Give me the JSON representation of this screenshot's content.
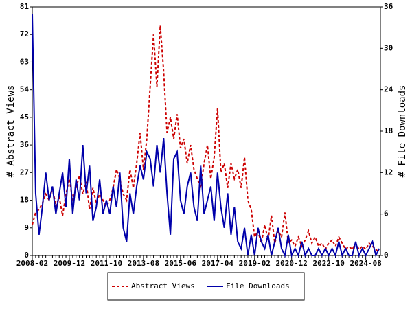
{
  "chart_data": {
    "type": "line",
    "y_label": "# Abstract Views",
    "y2_label": "# File Downloads",
    "categories": [
      "2008-02",
      null,
      null,
      null,
      null,
      null,
      null,
      null,
      null,
      null,
      null,
      "2009-12",
      null,
      null,
      null,
      null,
      null,
      null,
      null,
      null,
      null,
      null,
      "2011-10",
      null,
      null,
      null,
      null,
      null,
      null,
      null,
      null,
      null,
      null,
      "2013-08",
      null,
      null,
      null,
      null,
      null,
      null,
      null,
      null,
      null,
      null,
      "2015-06",
      null,
      null,
      null,
      null,
      null,
      null,
      null,
      null,
      null,
      null,
      "2017-04",
      null,
      null,
      null,
      null,
      null,
      null,
      null,
      null,
      null,
      null,
      "2019-02",
      null,
      null,
      null,
      null,
      null,
      null,
      null,
      null,
      null,
      null,
      "2020-12",
      null,
      null,
      null,
      null,
      null,
      null,
      null,
      null,
      null,
      null,
      "2022-10",
      null,
      null,
      null,
      null,
      null,
      null,
      null,
      null,
      null,
      null,
      "2024-08",
      null,
      null,
      null,
      null
    ],
    "series": [
      {
        "name": "Abstract Views",
        "color": "#cc0000",
        "line_style": "dashed",
        "axis": "y",
        "values": [
          10,
          14,
          15,
          17,
          20,
          18,
          22,
          16,
          19,
          13,
          20,
          25,
          18,
          22,
          26,
          20,
          24,
          15,
          22,
          17,
          20,
          18,
          16,
          18,
          22,
          28,
          25,
          20,
          18,
          28,
          22,
          30,
          40,
          28,
          38,
          55,
          72,
          55,
          75,
          60,
          40,
          45,
          38,
          46,
          35,
          38,
          30,
          36,
          28,
          25,
          22,
          30,
          36,
          25,
          32,
          48,
          27,
          30,
          22,
          30,
          25,
          28,
          22,
          32,
          18,
          15,
          6,
          8,
          4,
          10,
          5,
          13,
          4,
          8,
          6,
          14,
          4,
          5,
          3,
          6,
          3,
          5,
          8,
          4,
          6,
          3,
          4,
          2,
          4,
          5,
          3,
          6,
          4,
          2,
          3,
          2,
          4,
          2,
          3,
          2,
          4,
          3,
          2,
          1
        ]
      },
      {
        "name": "File Downloads",
        "color": "#0000aa",
        "line_style": "solid",
        "axis": "y2",
        "values": [
          35,
          9,
          3,
          7,
          12,
          8,
          10,
          6,
          9,
          12,
          7,
          14,
          6,
          11,
          8,
          16,
          9,
          13,
          5,
          7,
          11,
          6,
          8,
          6,
          10,
          7,
          12,
          4,
          2,
          9,
          6,
          10,
          13,
          11,
          15,
          14,
          10,
          16,
          12,
          17,
          9,
          3,
          14,
          15,
          8,
          6,
          10,
          12,
          7,
          5,
          13,
          6,
          8,
          10,
          5,
          12,
          7,
          4,
          9,
          3,
          7,
          2,
          1,
          4,
          0,
          3,
          0,
          4,
          2,
          1,
          3,
          0,
          2,
          4,
          1,
          0,
          3,
          0,
          1,
          0,
          2,
          0,
          1,
          0,
          0,
          1,
          0,
          1,
          0,
          1,
          0,
          2,
          0,
          1,
          0,
          0,
          2,
          0,
          1,
          0,
          1,
          2,
          0,
          1
        ]
      }
    ],
    "ylim": [
      0,
      81
    ],
    "yticks": [
      0,
      9,
      18,
      27,
      36,
      45,
      54,
      63,
      72,
      81
    ],
    "y2lim": [
      0,
      36
    ],
    "y2ticks": [
      0,
      6,
      12,
      18,
      24,
      30,
      36
    ]
  }
}
